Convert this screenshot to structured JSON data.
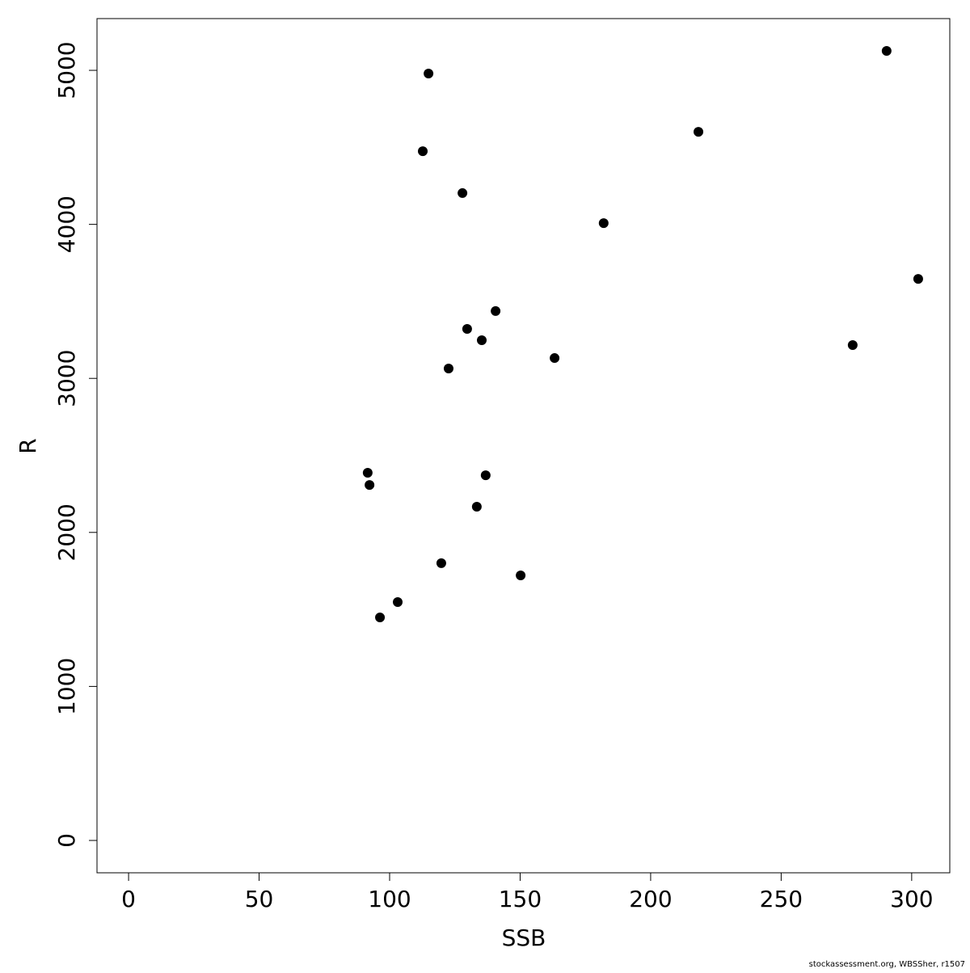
{
  "chart_data": {
    "type": "scatter",
    "x_label": "SSB",
    "y_label": "R",
    "footer": "stockassessment.org, WBSSher, r1507",
    "color": "#000000",
    "x": [
      114.9,
      290.4,
      112.7,
      218.3,
      127.9,
      182.0,
      302.5,
      140.6,
      129.7,
      135.3,
      277.4,
      163.2,
      122.6,
      91.6,
      92.3,
      136.8,
      133.4,
      119.8,
      150.2,
      103.1,
      96.3
    ],
    "values": [
      4979,
      5126,
      4475,
      4601,
      4203,
      4008,
      3646,
      3437,
      3321,
      3248,
      3216,
      3132,
      3064,
      2387,
      2308,
      2371,
      2167,
      1800,
      1721,
      1548,
      1448
    ],
    "xlim": [
      -12.1,
      314.6
    ],
    "ylim": [
      -210,
      5336
    ],
    "xticks": [
      0,
      50,
      100,
      150,
      200,
      250,
      300
    ],
    "yticks": [
      0,
      1000,
      2000,
      3000,
      4000,
      5000
    ]
  }
}
